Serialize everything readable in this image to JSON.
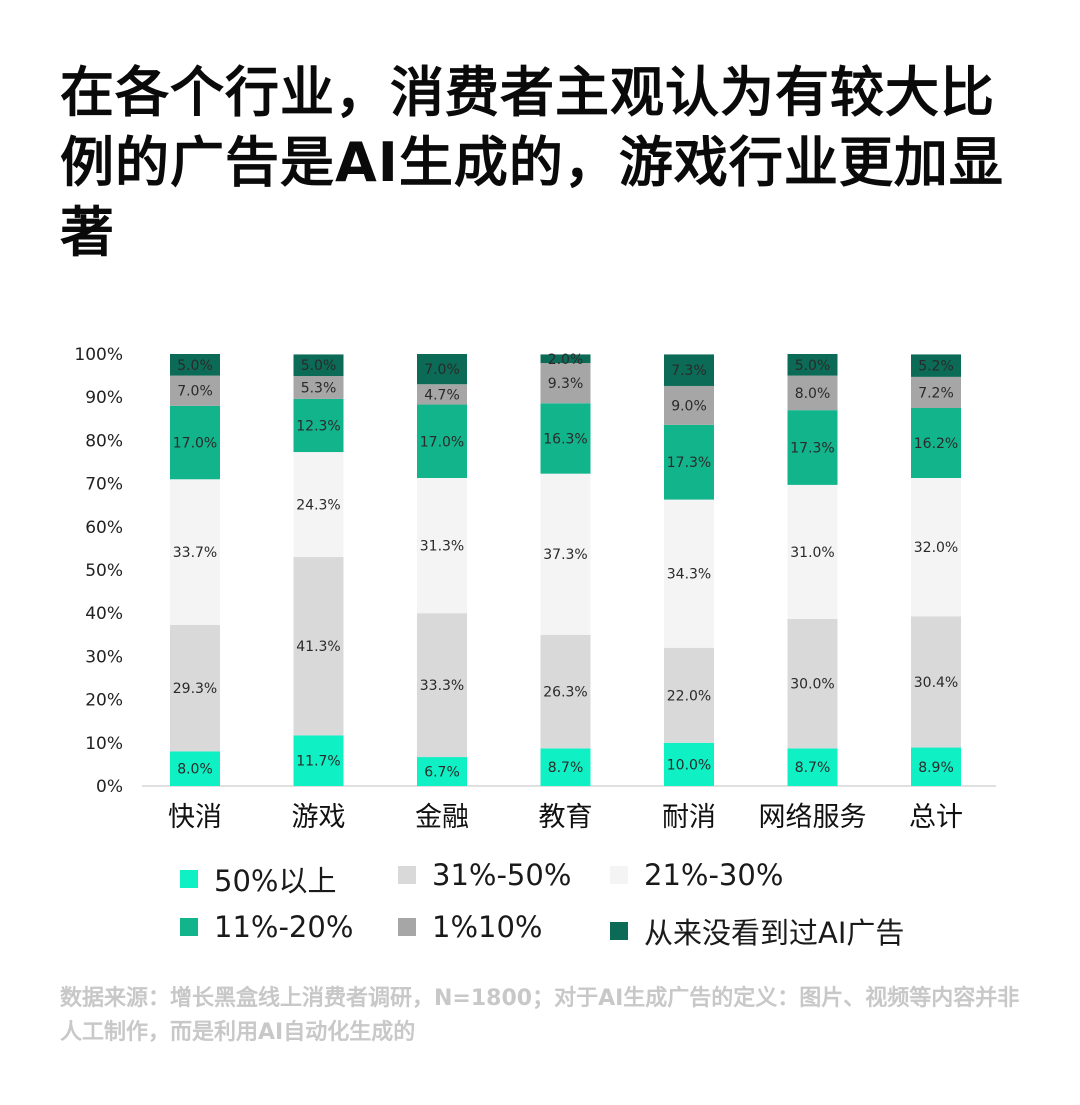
{
  "title": "在各个行业，消费者主观认为有较大比例的广告是AI生成的，游戏行业更加显著",
  "source": "数据来源：增长黑盒线上消费者调研，N=1800；对于AI生成广告的定义：图片、视频等内容并非人工制作，而是利用AI自动化生成的",
  "chart_data": {
    "type": "bar",
    "stacked": true,
    "categories": [
      "快消",
      "游戏",
      "金融",
      "教育",
      "耐消",
      "网络服务",
      "总计"
    ],
    "y_ticks": [
      "0%",
      "10%",
      "20%",
      "30%",
      "40%",
      "50%",
      "60%",
      "70%",
      "80%",
      "90%",
      "100%"
    ],
    "ylim": [
      0,
      100
    ],
    "grid": false,
    "legend_position": "bottom",
    "series": [
      {
        "name": "50%以上",
        "color": "#0ff0c4",
        "values": [
          8.0,
          11.7,
          6.7,
          8.7,
          10.0,
          8.7,
          8.9
        ],
        "labels": [
          "8.0%",
          "11.7%",
          "6.7%",
          "8.7%",
          "10.0%",
          "8.7%",
          "8.9%"
        ]
      },
      {
        "name": "31%-50%",
        "color": "#d9d9d9",
        "values": [
          29.3,
          41.3,
          33.3,
          26.3,
          22.0,
          30.0,
          30.4
        ],
        "labels": [
          "29.3%",
          "41.3%",
          "33.3%",
          "26.3%",
          "22.0%",
          "30.0%",
          "30.4%"
        ]
      },
      {
        "name": "21%-30%",
        "color": "#f5f4f4",
        "values": [
          33.7,
          24.3,
          31.3,
          37.3,
          34.3,
          31.0,
          32.0
        ],
        "labels": [
          "33.7%",
          "24.3%",
          "31.3%",
          "37.3%",
          "34.3%",
          "31.0%",
          "32.0%"
        ]
      },
      {
        "name": "11%-20%",
        "color": "#12b48c",
        "values": [
          17.0,
          12.3,
          17.0,
          16.3,
          17.3,
          17.3,
          16.2
        ],
        "labels": [
          "17.0%",
          "12.3%",
          "17.0%",
          "16.3%",
          "17.3%",
          "17.3%",
          "16.2%"
        ]
      },
      {
        "name": "1%10%",
        "color": "#a6a6a6",
        "values": [
          7.0,
          5.3,
          4.7,
          9.3,
          9.0,
          8.0,
          7.2
        ],
        "labels": [
          "7.0%",
          "5.3%",
          "4.7%",
          "9.3%",
          "9.0%",
          "8.0%",
          "7.2%"
        ]
      },
      {
        "name": "从来没看到过AI广告",
        "color": "#0c6b56",
        "values": [
          5.0,
          5.0,
          7.0,
          2.0,
          7.3,
          5.0,
          5.2
        ],
        "labels": [
          "5.0%",
          "5.0%",
          "7.0%",
          "2.0%",
          "7.3%",
          "5.0%",
          "5.2%"
        ]
      }
    ]
  }
}
